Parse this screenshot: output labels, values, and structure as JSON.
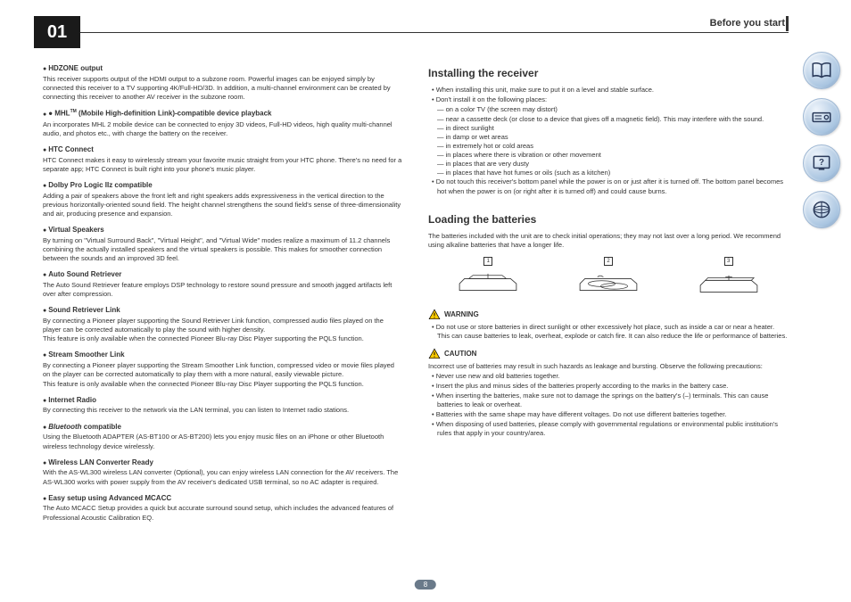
{
  "chapter": "01",
  "sectionHeader": "Before you start",
  "pageNumber": "8",
  "left": {
    "features": [
      {
        "title": "HDZONE output",
        "body": "This receiver supports output of the HDMI output to a subzone room. Powerful images can be enjoyed simply by connected this receiver to a TV supporting 4K/Full-HD/3D. In addition, a multi-channel environment can be created by connecting this receiver to another AV receiver in the subzone room."
      },
      {
        "title": "MHL™ (Mobile High-definition Link)-compatible device playback",
        "body": "An incorporates MHL 2 mobile device can be connected to enjoy 3D videos, Full-HD videos, high quality multi-channel audio, and photos etc., with charge the battery on the receiver."
      },
      {
        "title": "HTC Connect",
        "body": "HTC Connect makes it easy to wirelessly stream your favorite music straight from your HTC phone. There's no need for a separate app; HTC Connect is built right into your phone's music player."
      },
      {
        "title": "Dolby Pro Logic IIz compatible",
        "body": "Adding a pair of speakers above the front left and right speakers adds expressiveness in the vertical direction to the previous horizontally-oriented sound field. The height channel strengthens the sound field's sense of three-dimensionality and air, producing presence and expansion."
      },
      {
        "title": "Virtual Speakers",
        "body": "By turning on \"Virtual Surround Back\", \"Virtual Height\", and \"Virtual Wide\" modes realize a maximum of 11.2 channels combining the actually installed speakers and the virtual speakers is possible. This makes for smoother connection between the sounds and an improved 3D feel."
      },
      {
        "title": "Auto Sound Retriever",
        "body": "The Auto Sound Retriever feature employs DSP technology to restore sound pressure and smooth jagged artifacts left over after compression."
      },
      {
        "title": "Sound Retriever Link",
        "body": "By connecting a Pioneer player supporting the Sound Retriever Link function, compressed audio files played on the player can be corrected automatically to play the sound with higher density.",
        "extra": "This feature is only available when the connected Pioneer Blu-ray Disc Player supporting the PQLS function."
      },
      {
        "title": "Stream Smoother Link",
        "body": "By connecting a Pioneer player supporting the Stream Smoother Link function, compressed video or movie files played on the player can be corrected automatically to play them with a more natural, easily viewable picture.",
        "extra": "This feature is only available when the connected Pioneer Blu-ray Disc Player supporting the PQLS function."
      },
      {
        "title": "Internet Radio",
        "body": "By connecting this receiver to the network via the LAN terminal, you can listen to Internet radio stations."
      },
      {
        "title": "Bluetooth compatible",
        "italic": true,
        "body": "Using the Bluetooth ADAPTER (AS-BT100 or AS-BT200) lets you enjoy music files on an iPhone or other Bluetooth wireless technology device wirelessly."
      },
      {
        "title": "Wireless LAN Converter Ready",
        "body": "With the AS-WL300 wireless LAN converter (Optional), you can enjoy wireless LAN connection for the AV receivers. The AS-WL300 works with power supply from the AV receiver's dedicated USB terminal, so no AC adapter is required."
      },
      {
        "title": "Easy setup using Advanced MCACC",
        "body": "The Auto MCACC Setup provides a quick but accurate surround sound setup, which includes the advanced features of Professional Acoustic Calibration EQ."
      }
    ]
  },
  "right": {
    "installing": {
      "title": "Installing the receiver",
      "bullets": [
        "When installing this unit, make sure to put it on a level and stable surface.",
        "Don't install it on the following places:"
      ],
      "dashes": [
        "on a color TV (the screen may distort)",
        "near a cassette deck (or close to a device that gives off a magnetic field). This may interfere with the sound.",
        "in direct sunlight",
        "in damp or wet areas",
        "in extremely hot or cold areas",
        "in places where there is vibration or other movement",
        "in places that are very dusty",
        "in places that have hot fumes or oils (such as a kitchen)"
      ],
      "bulletsAfter": [
        "Do not touch this receiver's bottom panel while the power is on or just after it is turned off. The bottom panel becomes hot when the power is on (or right after it is turned off) and could cause burns."
      ]
    },
    "loading": {
      "title": "Loading the batteries",
      "intro": "The batteries included with the unit are to check initial operations; they may not last over a long period. We recommend using alkaline batteries that have a longer life.",
      "warningLabel": "WARNING",
      "warningItems": [
        "Do not use or store batteries in direct sunlight or other excessively hot place, such as inside a car or near a heater. This can cause batteries to leak, overheat, explode or catch fire. It can also reduce the life or performance of batteries."
      ],
      "cautionLabel": "CAUTION",
      "cautionIntro": "Incorrect use of batteries may result in such hazards as leakage and bursting. Observe the following precautions:",
      "cautionItems": [
        "Never use new and old batteries together.",
        "Insert the plus and minus sides of the batteries properly according to the marks in the battery case.",
        "When inserting the batteries, make sure not to damage the springs on the battery's (–) terminals. This can cause batteries to leak or overheat.",
        "Batteries with the same shape may have different voltages. Do not use different batteries together.",
        "When disposing of used batteries, please comply with governmental regulations or environmental public institution's rules that apply in your country/area."
      ]
    }
  },
  "colors": {
    "warnStroke": "#000",
    "warnFill": "#ffcc00",
    "iconBg1": "#eef4fb",
    "iconBg2": "#a8c4e0"
  }
}
